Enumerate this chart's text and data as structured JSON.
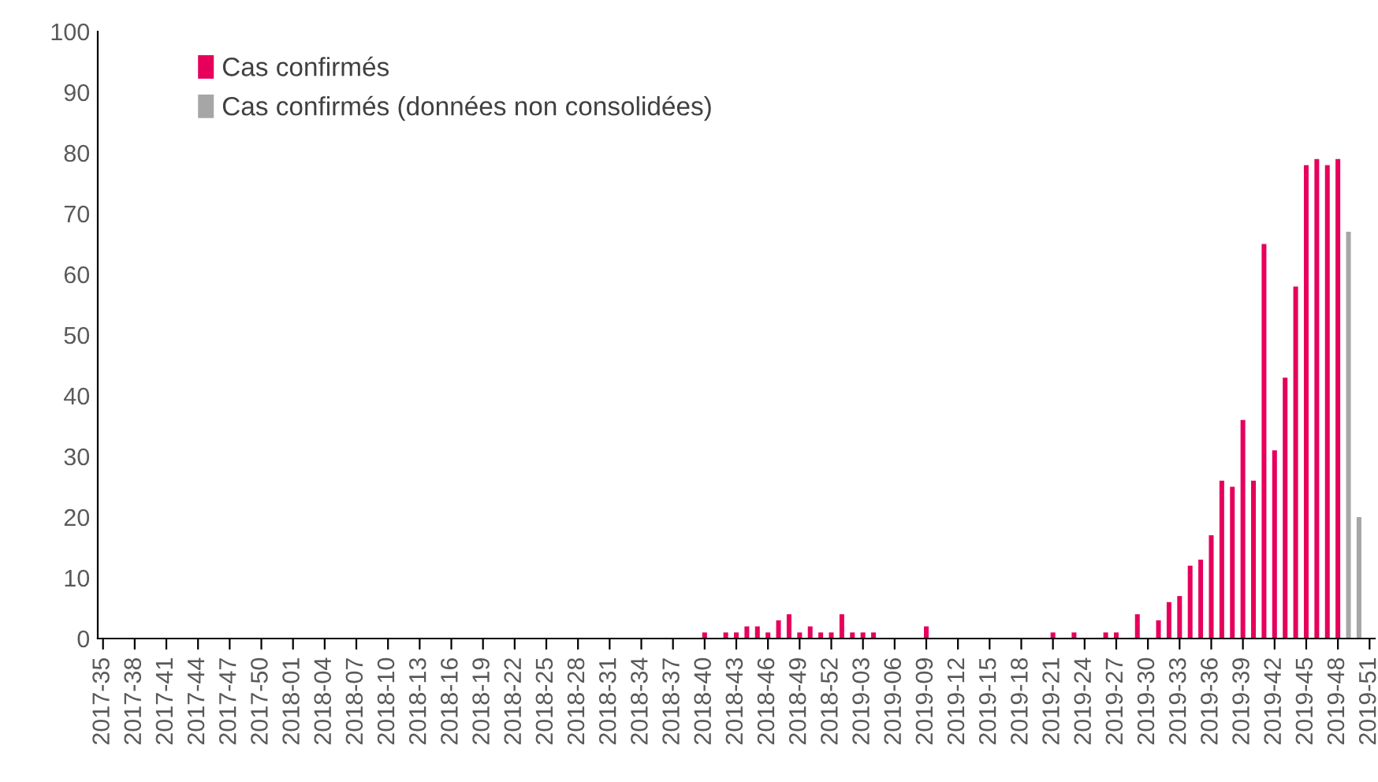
{
  "chart_data": {
    "type": "bar",
    "categories": [
      "2017-35",
      null,
      null,
      "2017-38",
      null,
      null,
      "2017-41",
      null,
      null,
      "2017-44",
      null,
      null,
      "2017-47",
      null,
      null,
      "2017-50",
      null,
      null,
      "2018-01",
      null,
      null,
      "2018-04",
      null,
      null,
      "2018-07",
      null,
      null,
      "2018-10",
      null,
      null,
      "2018-13",
      null,
      null,
      "2018-16",
      null,
      null,
      "2018-19",
      null,
      null,
      "2018-22",
      null,
      null,
      "2018-25",
      null,
      null,
      "2018-28",
      null,
      null,
      "2018-31",
      null,
      null,
      "2018-34",
      null,
      null,
      "2018-37",
      null,
      null,
      "2018-40",
      null,
      null,
      "2018-43",
      null,
      null,
      "2018-46",
      null,
      null,
      "2018-49",
      null,
      null,
      "2018-52",
      null,
      null,
      "2019-03",
      null,
      null,
      "2019-06",
      null,
      null,
      "2019-09",
      null,
      null,
      "2019-12",
      null,
      null,
      "2019-15",
      null,
      null,
      "2019-18",
      null,
      null,
      "2019-21",
      null,
      null,
      "2019-24",
      null,
      null,
      "2019-27",
      null,
      null,
      "2019-30",
      null,
      null,
      "2019-33",
      null,
      null,
      "2019-36",
      null,
      null,
      "2019-39",
      null,
      null,
      "2019-42",
      null,
      null,
      "2019-45",
      null,
      null,
      "2019-48",
      null,
      null,
      "2019-51"
    ],
    "series": [
      {
        "name": "Cas confirmés",
        "color": "#e6005c",
        "values": [
          0,
          0,
          0,
          0,
          0,
          0,
          0,
          0,
          0,
          0,
          0,
          0,
          0,
          0,
          0,
          0,
          0,
          0,
          0,
          0,
          0,
          0,
          0,
          0,
          0,
          0,
          0,
          0,
          0,
          0,
          0,
          0,
          0,
          0,
          0,
          0,
          0,
          0,
          0,
          0,
          0,
          0,
          0,
          0,
          0,
          0,
          0,
          0,
          0,
          0,
          0,
          0,
          0,
          0,
          0,
          0,
          0,
          1,
          0,
          1,
          1,
          2,
          2,
          1,
          3,
          4,
          1,
          2,
          1,
          1,
          4,
          1,
          1,
          1,
          0,
          0,
          0,
          0,
          2,
          0,
          0,
          0,
          0,
          0,
          0,
          0,
          0,
          0,
          0,
          0,
          1,
          0,
          1,
          0,
          0,
          1,
          1,
          0,
          4,
          0,
          3,
          6,
          7,
          12,
          13,
          17,
          26,
          25,
          36,
          26,
          65,
          31,
          43,
          58,
          78,
          79,
          78,
          79,
          null,
          null,
          null
        ]
      },
      {
        "name": "Cas confirmés (données non consolidées)",
        "color": "#a6a6a6",
        "values": [
          null,
          null,
          null,
          null,
          null,
          null,
          null,
          null,
          null,
          null,
          null,
          null,
          null,
          null,
          null,
          null,
          null,
          null,
          null,
          null,
          null,
          null,
          null,
          null,
          null,
          null,
          null,
          null,
          null,
          null,
          null,
          null,
          null,
          null,
          null,
          null,
          null,
          null,
          null,
          null,
          null,
          null,
          null,
          null,
          null,
          null,
          null,
          null,
          null,
          null,
          null,
          null,
          null,
          null,
          null,
          null,
          null,
          null,
          null,
          null,
          null,
          null,
          null,
          null,
          null,
          null,
          null,
          null,
          null,
          null,
          null,
          null,
          null,
          null,
          null,
          null,
          null,
          null,
          null,
          null,
          null,
          null,
          null,
          null,
          null,
          null,
          null,
          null,
          null,
          null,
          null,
          null,
          null,
          null,
          null,
          null,
          null,
          null,
          null,
          null,
          null,
          null,
          null,
          null,
          null,
          null,
          null,
          null,
          null,
          null,
          null,
          null,
          null,
          null,
          null,
          null,
          null,
          null,
          67,
          20,
          null
        ]
      }
    ],
    "ylim": [
      0,
      100
    ],
    "yticks": [
      0,
      10,
      20,
      30,
      40,
      50,
      60,
      70,
      80,
      90,
      100
    ],
    "grid": false,
    "legend": "top left"
  }
}
